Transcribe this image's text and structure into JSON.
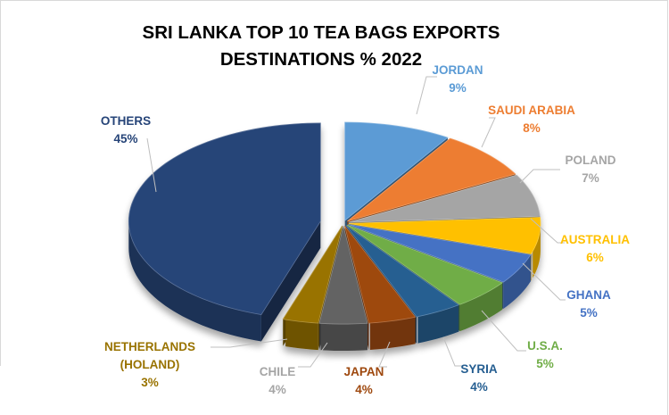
{
  "chart_data": {
    "type": "pie",
    "title": "SRI LANKA TOP 10 TEA BAGS EXPORTS DESTINATIONS % 2022",
    "title_lines": [
      "SRI LANKA TOP 10 TEA BAGS EXPORTS",
      "DESTINATIONS % 2022"
    ],
    "style": "3d-exploded",
    "slices": [
      {
        "name": "JORDAN",
        "value": 9,
        "value_label": "9%",
        "color": "#5b9bd5"
      },
      {
        "name": "SAUDI ARABIA",
        "value": 8,
        "value_label": "8%",
        "color": "#ed7d31"
      },
      {
        "name": "POLAND",
        "value": 7,
        "value_label": "7%",
        "color": "#a5a5a5"
      },
      {
        "name": "AUSTRALIA",
        "value": 6,
        "value_label": "6%",
        "color": "#ffc000"
      },
      {
        "name": "GHANA",
        "value": 5,
        "value_label": "5%",
        "color": "#4472c4"
      },
      {
        "name": "U.S.A.",
        "value": 5,
        "value_label": "5%",
        "color": "#70ad47"
      },
      {
        "name": "SYRIA",
        "value": 4,
        "value_label": "4%",
        "color": "#255e91"
      },
      {
        "name": "JAPAN",
        "value": 4,
        "value_label": "4%",
        "color": "#9e480e"
      },
      {
        "name": "CHILE",
        "value": 4,
        "value_label": "4%",
        "color": "#636363"
      },
      {
        "name": "NETHERLANDS (HOLAND)",
        "name_lines": [
          "NETHERLANDS",
          "(HOLAND)"
        ],
        "value": 3,
        "value_label": "3%",
        "color": "#997300"
      },
      {
        "name": "OTHERS",
        "value": 45,
        "value_label": "45%",
        "color": "#264478"
      }
    ],
    "legend": "none",
    "data_labels": "outside-with-leader-lines"
  }
}
